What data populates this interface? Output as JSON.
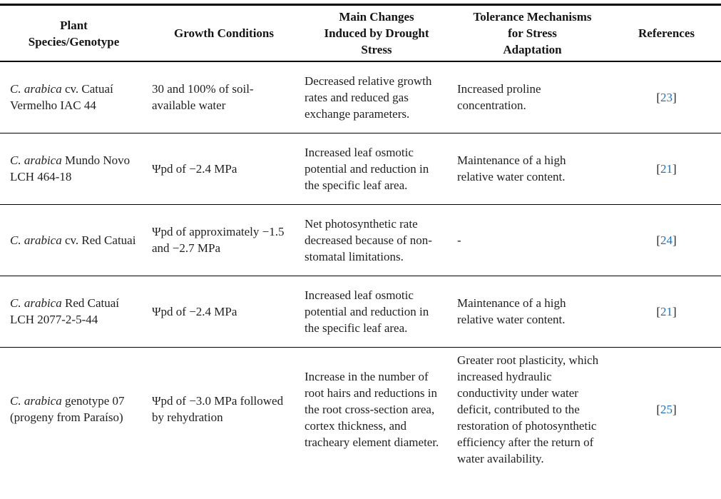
{
  "colors": {
    "text": "#1f1f1f",
    "rule": "#000000",
    "citation_link_blue": "#2272b5"
  },
  "table": {
    "headers": [
      "Plant\nSpecies/Genotype",
      "Growth Conditions",
      "Main Changes\nInduced by Drought\nStress",
      "Tolerance Mechanisms\nfor Stress\nAdaptation",
      "References"
    ],
    "rows": [
      {
        "species_italic": "C. arabica",
        "species_rest": "cv. Catuaí Vermelho IAC 44",
        "growth": "30 and 100% of soil-available water",
        "changes": "Decreased relative growth rates and reduced gas exchange parameters.",
        "tolerance": "Increased proline concentration.",
        "ref": {
          "open": "[",
          "number": "23",
          "close": "]"
        }
      },
      {
        "species_italic": "C. arabica",
        "species_rest": "Mundo Novo LCH 464-18",
        "growth": "Ψpd of −2.4 MPa",
        "changes": "Increased leaf osmotic potential and reduction in the specific leaf area.",
        "tolerance": "Maintenance of a high relative water content.",
        "ref": {
          "open": "[",
          "number": "21",
          "close": "]"
        }
      },
      {
        "species_italic": "C. arabica",
        "species_rest": "cv. Red Catuai",
        "growth": "Ψpd of approximately −1.5 and −2.7 MPa",
        "changes": "Net photosynthetic rate decreased because of non-stomatal limitations.",
        "tolerance": "-",
        "ref": {
          "open": "[",
          "number": "24",
          "close": "]"
        }
      },
      {
        "species_italic": "C. arabica",
        "species_rest": "Red Catuaí LCH 2077-2-5-44",
        "growth": "Ψpd of −2.4 MPa",
        "changes": "Increased leaf osmotic potential and reduction in the specific leaf area.",
        "tolerance": "Maintenance of a high relative water content.",
        "ref": {
          "open": "[",
          "number": "21",
          "close": "]"
        }
      },
      {
        "species_italic": "C. arabica",
        "species_rest": "genotype 07 (progeny from Paraíso)",
        "growth": "Ψpd of −3.0 MPa followed by rehydration",
        "changes": "Increase in the number of root hairs and reductions in the root cross-section area, cortex thickness, and tracheary element diameter.",
        "tolerance": "Greater root plasticity, which increased hydraulic conductivity under water deficit, contributed to the restoration of photosynthetic efficiency after the return of water availability.",
        "ref": {
          "open": "[",
          "number": "25",
          "close": "]"
        }
      }
    ]
  }
}
